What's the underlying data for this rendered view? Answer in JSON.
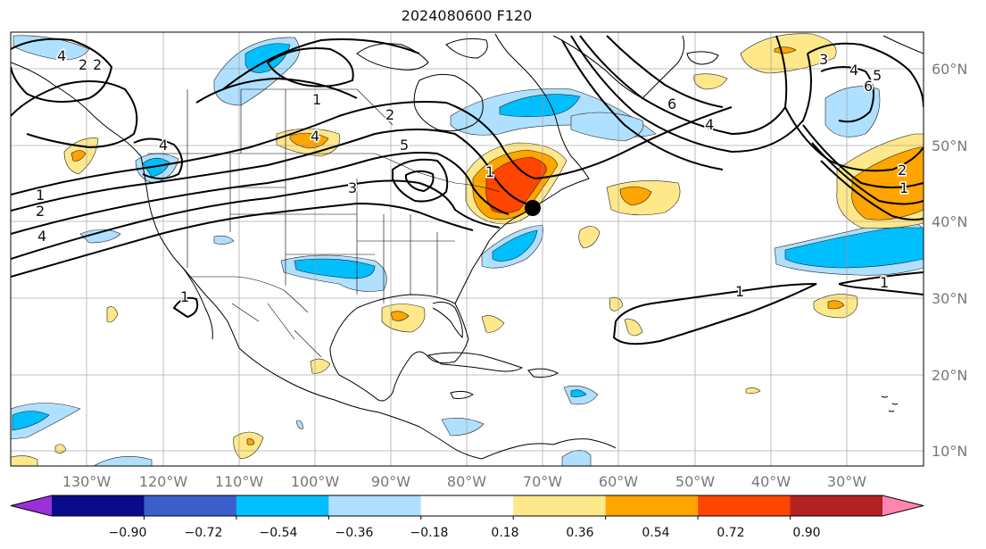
{
  "title": "2024080600 F120",
  "lat_labels": [
    "60°N",
    "50°N",
    "40°N",
    "30°N",
    "20°N",
    "10°N"
  ],
  "lon_labels": [
    "130°W",
    "120°W",
    "110°W",
    "100°W",
    "90°W",
    "80°W",
    "70°W",
    "60°W",
    "50°W",
    "40°W",
    "30°W"
  ],
  "colorbar": {
    "ticks": [
      "−0.90",
      "−0.72",
      "−0.54",
      "−0.36",
      "−0.18",
      "0.18",
      "0.36",
      "0.54",
      "0.72",
      "0.90"
    ],
    "colors": [
      "#9b30d8",
      "#0a0a8c",
      "#3a5fcd",
      "#00bfff",
      "#b0e0ff",
      "#ffffff",
      "#ffe88a",
      "#ffa500",
      "#ff4500",
      "#b22222",
      "#ff85b0"
    ]
  },
  "contour_labels": [
    "4",
    "2",
    "2",
    "1",
    "4",
    "4",
    "2",
    "1",
    "4",
    "1",
    "2",
    "5",
    "3",
    "6",
    "4",
    "6",
    "5",
    "4",
    "3",
    "2",
    "1",
    "1",
    "1",
    "1"
  ],
  "marker": "black dot"
}
